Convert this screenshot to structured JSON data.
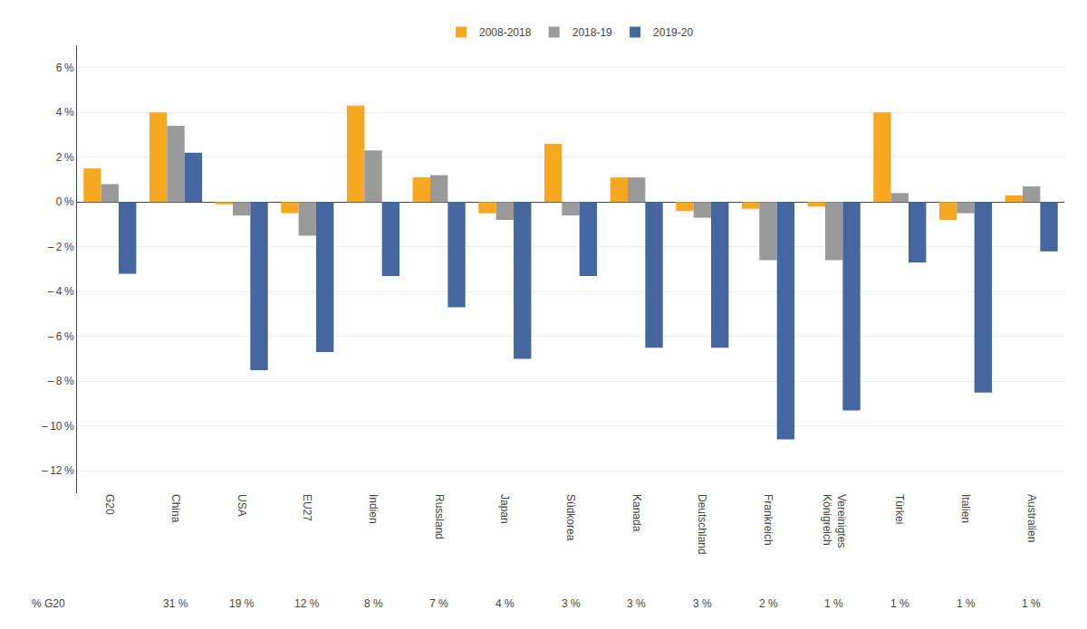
{
  "chart_data": {
    "type": "bar",
    "categories": [
      "G20",
      "China",
      "USA",
      "EU27",
      "Indien",
      "Russland",
      "Japan",
      "Südkorea",
      "Kanada",
      "Deutschland",
      "Frankreich",
      "Vereinigtes\nKönigreich",
      "Türkei",
      "Italien",
      "Australien"
    ],
    "series": [
      {
        "name": "2008-2018",
        "color": "#F5A820",
        "values": [
          1.5,
          4.0,
          -0.1,
          -0.5,
          4.3,
          1.1,
          -0.5,
          2.6,
          1.1,
          -0.4,
          -0.3,
          -0.2,
          4.0,
          -0.8,
          0.3
        ]
      },
      {
        "name": "2018-19",
        "color": "#9A9A9A",
        "values": [
          0.8,
          3.4,
          -0.6,
          -1.5,
          2.3,
          1.2,
          -0.8,
          -0.6,
          1.1,
          -0.7,
          -2.6,
          -2.6,
          0.4,
          -0.5,
          0.7
        ]
      },
      {
        "name": "2019-20",
        "color": "#4567A0",
        "values": [
          -3.2,
          2.2,
          -7.5,
          -6.7,
          -3.3,
          -4.7,
          -7.0,
          -3.3,
          -6.5,
          -6.5,
          -10.6,
          -9.3,
          -2.7,
          -8.5,
          -2.2
        ]
      }
    ],
    "ylim": [
      -13.0,
      7.0
    ],
    "yticks": [
      {
        "value": 6,
        "label": "6 %"
      },
      {
        "value": 4,
        "label": "4 %"
      },
      {
        "value": 2,
        "label": "2 %"
      },
      {
        "value": 0,
        "label": "0 %"
      },
      {
        "value": -2,
        "label": "– 2 %"
      },
      {
        "value": -4,
        "label": "– 4 %"
      },
      {
        "value": -6,
        "label": "– 6 %"
      },
      {
        "value": -8,
        "label": "– 8 %"
      },
      {
        "value": -10,
        "label": "– 10 %"
      },
      {
        "value": -12,
        "label": "– 12 %"
      }
    ],
    "grid": true,
    "legend": "upper center",
    "g20_share_title": "% G20",
    "g20_share": [
      null,
      31,
      19,
      12,
      8,
      7,
      4,
      3,
      3,
      3,
      2,
      1,
      1,
      1,
      1
    ],
    "g20_share_labels": [
      null,
      "31 %",
      "19 %",
      "12 %",
      "8 %",
      "7 %",
      "4 %",
      "3 %",
      "3 %",
      "3 %",
      "2 %",
      "1 %",
      "1 %",
      "1 %",
      "1 %"
    ]
  }
}
